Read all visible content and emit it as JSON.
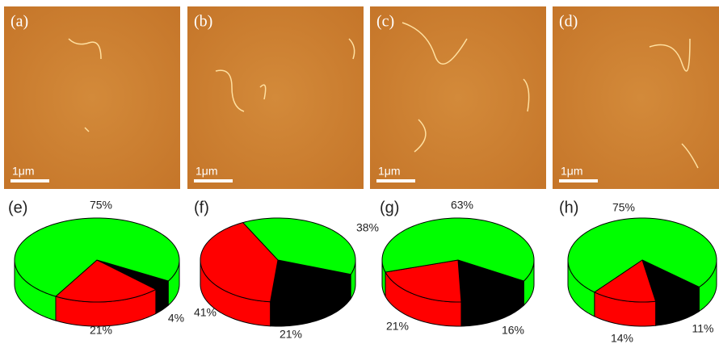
{
  "panels": [
    {
      "label": "(a)",
      "scale": "1μm"
    },
    {
      "label": "(b)",
      "scale": "1μm"
    },
    {
      "label": "(c)",
      "scale": "1μm"
    },
    {
      "label": "(d)",
      "scale": "1μm"
    }
  ],
  "chart_data": [
    {
      "type": "pie",
      "label": "(e)",
      "values": [
        75,
        21,
        4
      ],
      "value_labels": [
        "75%",
        "21%",
        "4%"
      ],
      "colors": [
        "#00ff00",
        "#ff0000",
        "#000000"
      ]
    },
    {
      "type": "pie",
      "label": "(f)",
      "values": [
        38,
        41,
        21
      ],
      "value_labels": [
        "38%",
        "41%",
        "21%"
      ],
      "colors": [
        "#00ff00",
        "#ff0000",
        "#000000"
      ]
    },
    {
      "type": "pie",
      "label": "(g)",
      "values": [
        63,
        21,
        16
      ],
      "value_labels": [
        "63%",
        "21%",
        "16%"
      ],
      "colors": [
        "#00ff00",
        "#ff0000",
        "#000000"
      ]
    },
    {
      "type": "pie",
      "label": "(h)",
      "values": [
        75,
        14,
        11
      ],
      "value_labels": [
        "75%",
        "14%",
        "11%"
      ],
      "colors": [
        "#00ff00",
        "#ff0000",
        "#000000"
      ]
    }
  ]
}
